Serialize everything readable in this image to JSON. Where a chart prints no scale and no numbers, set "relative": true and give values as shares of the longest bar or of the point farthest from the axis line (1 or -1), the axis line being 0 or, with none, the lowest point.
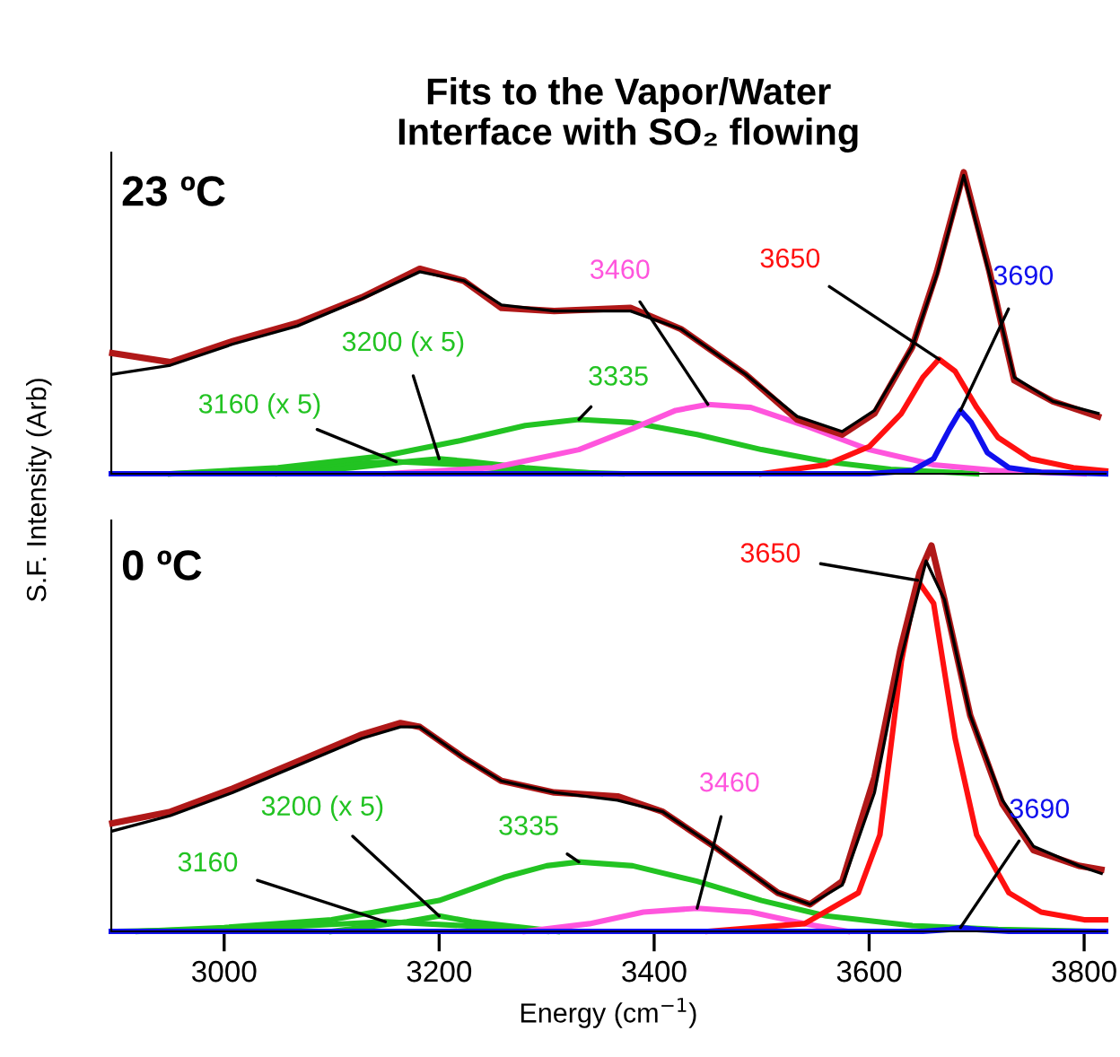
{
  "chart_data": [
    {
      "type": "line",
      "title": "Fits to the Vapor/Water\nInterface with SO₂ flowing",
      "ylabel": "S.F. Intensity (Arb)",
      "relative": true,
      "xlim": [
        2895,
        3820
      ],
      "tick_labels": false,
      "legend": false,
      "grid": false,
      "annotations": [
        "23 ºC"
      ],
      "series": [
        {
          "color": "#b01818",
          "x": [
            2896,
            2950,
            3008,
            3068,
            3128,
            3182,
            3223,
            3258,
            3307,
            3378,
            3425,
            3485,
            3533,
            3575,
            3605,
            3640,
            3663,
            3688,
            3712,
            3735,
            3771,
            3813
          ],
          "values": [
            0.4,
            0.37,
            0.44,
            0.5,
            0.585,
            0.68,
            0.64,
            0.55,
            0.54,
            0.55,
            0.48,
            0.33,
            0.18,
            0.13,
            0.2,
            0.42,
            0.67,
            1.0,
            0.67,
            0.31,
            0.24,
            0.19
          ]
        },
        {
          "color": "#000000",
          "x": [
            2896,
            2950,
            3008,
            3068,
            3128,
            3182,
            3223,
            3258,
            3307,
            3378,
            3425,
            3485,
            3533,
            3575,
            3605,
            3640,
            3663,
            3688,
            3712,
            3735,
            3771,
            3813
          ],
          "values": [
            0.33,
            0.36,
            0.43,
            0.49,
            0.58,
            0.67,
            0.64,
            0.56,
            0.54,
            0.54,
            0.48,
            0.33,
            0.19,
            0.14,
            0.21,
            0.42,
            0.66,
            0.99,
            0.66,
            0.32,
            0.24,
            0.2
          ]
        },
        {
          "name": "3160 (x 5)",
          "color": "#22c322",
          "x": [
            2950,
            3050,
            3100,
            3160,
            3220,
            3270,
            3370
          ],
          "values": [
            0,
            0.01,
            0.03,
            0.04,
            0.03,
            0.01,
            0
          ]
        },
        {
          "name": "3200 (x 5)",
          "color": "#22c322",
          "x": [
            3050,
            3120,
            3170,
            3200,
            3230,
            3280,
            3350
          ],
          "values": [
            0,
            0.02,
            0.04,
            0.05,
            0.04,
            0.02,
            0
          ]
        },
        {
          "name": "3335",
          "color": "#22c322",
          "x": [
            2950,
            3050,
            3150,
            3220,
            3280,
            3330,
            3380,
            3440,
            3500,
            3560,
            3620,
            3700
          ],
          "values": [
            0,
            0.02,
            0.06,
            0.11,
            0.16,
            0.18,
            0.17,
            0.13,
            0.08,
            0.04,
            0.015,
            0
          ]
        },
        {
          "name": "3460",
          "color": "#ff55dd",
          "x": [
            3150,
            3250,
            3330,
            3380,
            3420,
            3450,
            3490,
            3540,
            3600,
            3660,
            3720,
            3800
          ],
          "values": [
            0,
            0.02,
            0.08,
            0.15,
            0.21,
            0.23,
            0.22,
            0.16,
            0.08,
            0.03,
            0.01,
            0
          ]
        },
        {
          "name": "3650",
          "color": "#ff1010",
          "x": [
            3500,
            3560,
            3600,
            3630,
            3650,
            3665,
            3680,
            3700,
            3720,
            3750,
            3790,
            3820
          ],
          "values": [
            0,
            0.03,
            0.09,
            0.2,
            0.32,
            0.38,
            0.34,
            0.22,
            0.12,
            0.05,
            0.02,
            0.01
          ]
        },
        {
          "name": "3690",
          "color": "#1010ee",
          "x": [
            2895,
            3600,
            3640,
            3660,
            3675,
            3685,
            3695,
            3710,
            3730,
            3760,
            3820
          ],
          "values": [
            0,
            0,
            0.01,
            0.05,
            0.15,
            0.21,
            0.17,
            0.07,
            0.02,
            0.005,
            0
          ]
        }
      ]
    },
    {
      "type": "line",
      "xlabel": "Energy (cm$^{−1}$)",
      "relative": true,
      "xlim": [
        2895,
        3820
      ],
      "xticks": [
        3000,
        3200,
        3400,
        3600,
        3800
      ],
      "tick_labels": "x",
      "legend": false,
      "grid": false,
      "annotations": [
        "0 ºC"
      ],
      "series": [
        {
          "color": "#b01818",
          "x": [
            2896,
            2950,
            3008,
            3068,
            3128,
            3164,
            3182,
            3223,
            3258,
            3307,
            3366,
            3408,
            3456,
            3515,
            3545,
            3575,
            3605,
            3629,
            3647,
            3658,
            3670,
            3694,
            3724,
            3753,
            3795,
            3816
          ],
          "values": [
            0.28,
            0.31,
            0.37,
            0.44,
            0.51,
            0.54,
            0.53,
            0.45,
            0.39,
            0.36,
            0.35,
            0.31,
            0.22,
            0.1,
            0.07,
            0.13,
            0.4,
            0.73,
            0.93,
            1.0,
            0.86,
            0.56,
            0.33,
            0.21,
            0.17,
            0.16
          ]
        },
        {
          "color": "#000000",
          "x": [
            2896,
            2950,
            3008,
            3068,
            3128,
            3164,
            3182,
            3223,
            3258,
            3307,
            3366,
            3408,
            3456,
            3515,
            3545,
            3575,
            3605,
            3629,
            3653,
            3670,
            3694,
            3724,
            3753,
            3795,
            3816
          ],
          "values": [
            0.26,
            0.3,
            0.36,
            0.43,
            0.5,
            0.53,
            0.53,
            0.45,
            0.39,
            0.36,
            0.34,
            0.31,
            0.22,
            0.1,
            0.07,
            0.12,
            0.36,
            0.7,
            0.96,
            0.86,
            0.56,
            0.34,
            0.22,
            0.17,
            0.15
          ]
        },
        {
          "name": "3160",
          "color": "#22c322",
          "x": [
            2900,
            3000,
            3080,
            3150,
            3220,
            3300
          ],
          "values": [
            0,
            0.005,
            0.015,
            0.025,
            0.015,
            0
          ]
        },
        {
          "name": "3200 (x 5)",
          "color": "#22c322",
          "x": [
            3100,
            3170,
            3200,
            3230,
            3310
          ],
          "values": [
            0,
            0.025,
            0.04,
            0.025,
            0
          ]
        },
        {
          "name": "3335",
          "color": "#22c322",
          "x": [
            2920,
            3000,
            3100,
            3200,
            3260,
            3300,
            3330,
            3380,
            3440,
            3500,
            3560,
            3640,
            3720,
            3810
          ],
          "values": [
            0,
            0.01,
            0.03,
            0.08,
            0.14,
            0.17,
            0.18,
            0.17,
            0.13,
            0.08,
            0.04,
            0.015,
            0.005,
            0
          ]
        },
        {
          "name": "3460",
          "color": "#ff55dd",
          "x": [
            3280,
            3340,
            3390,
            3440,
            3490,
            3540,
            3580
          ],
          "values": [
            0,
            0.02,
            0.05,
            0.06,
            0.05,
            0.02,
            0
          ]
        },
        {
          "name": "3650",
          "color": "#ff1010",
          "x": [
            3450,
            3540,
            3590,
            3610,
            3630,
            3645,
            3660,
            3680,
            3700,
            3730,
            3760,
            3800,
            3820
          ],
          "values": [
            0,
            0.02,
            0.1,
            0.25,
            0.7,
            0.91,
            0.85,
            0.5,
            0.25,
            0.1,
            0.05,
            0.03,
            0.03
          ]
        },
        {
          "name": "3690",
          "color": "#1010ee",
          "x": [
            2895,
            3650,
            3675,
            3685,
            3700,
            3730,
            3820
          ],
          "values": [
            0,
            0,
            0.005,
            0.01,
            0.005,
            0,
            0
          ]
        }
      ]
    }
  ]
}
